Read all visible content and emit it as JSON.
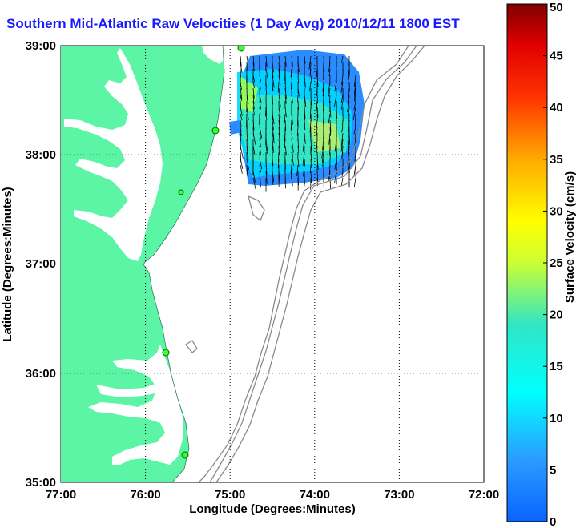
{
  "title": "Southern Mid-Atlantic Raw Velocities (1 Day Avg) 2010/12/11 1800 EST",
  "map": {
    "xlabel": "Longitude (Degrees:Minutes)",
    "ylabel": "Latitude (Degrees:Minutes)",
    "x_ticks": [
      "77:00",
      "76:00",
      "75:00",
      "74:00",
      "73:00",
      "72:00"
    ],
    "y_ticks": [
      "39:00",
      "38:00",
      "37:00",
      "36:00",
      "35:00"
    ],
    "land_color": "#5cf5a6",
    "grid": "dotted"
  },
  "colorbar": {
    "label": "Surface Velocity (cm/s)",
    "ticks": [
      "0",
      "5",
      "10",
      "15",
      "20",
      "25",
      "30",
      "35",
      "40",
      "45",
      "50"
    ],
    "min": 0,
    "max": 50,
    "colormap": "jet"
  },
  "stations": [
    "station-1",
    "station-2",
    "station-3",
    "station-4",
    "station-5"
  ]
}
